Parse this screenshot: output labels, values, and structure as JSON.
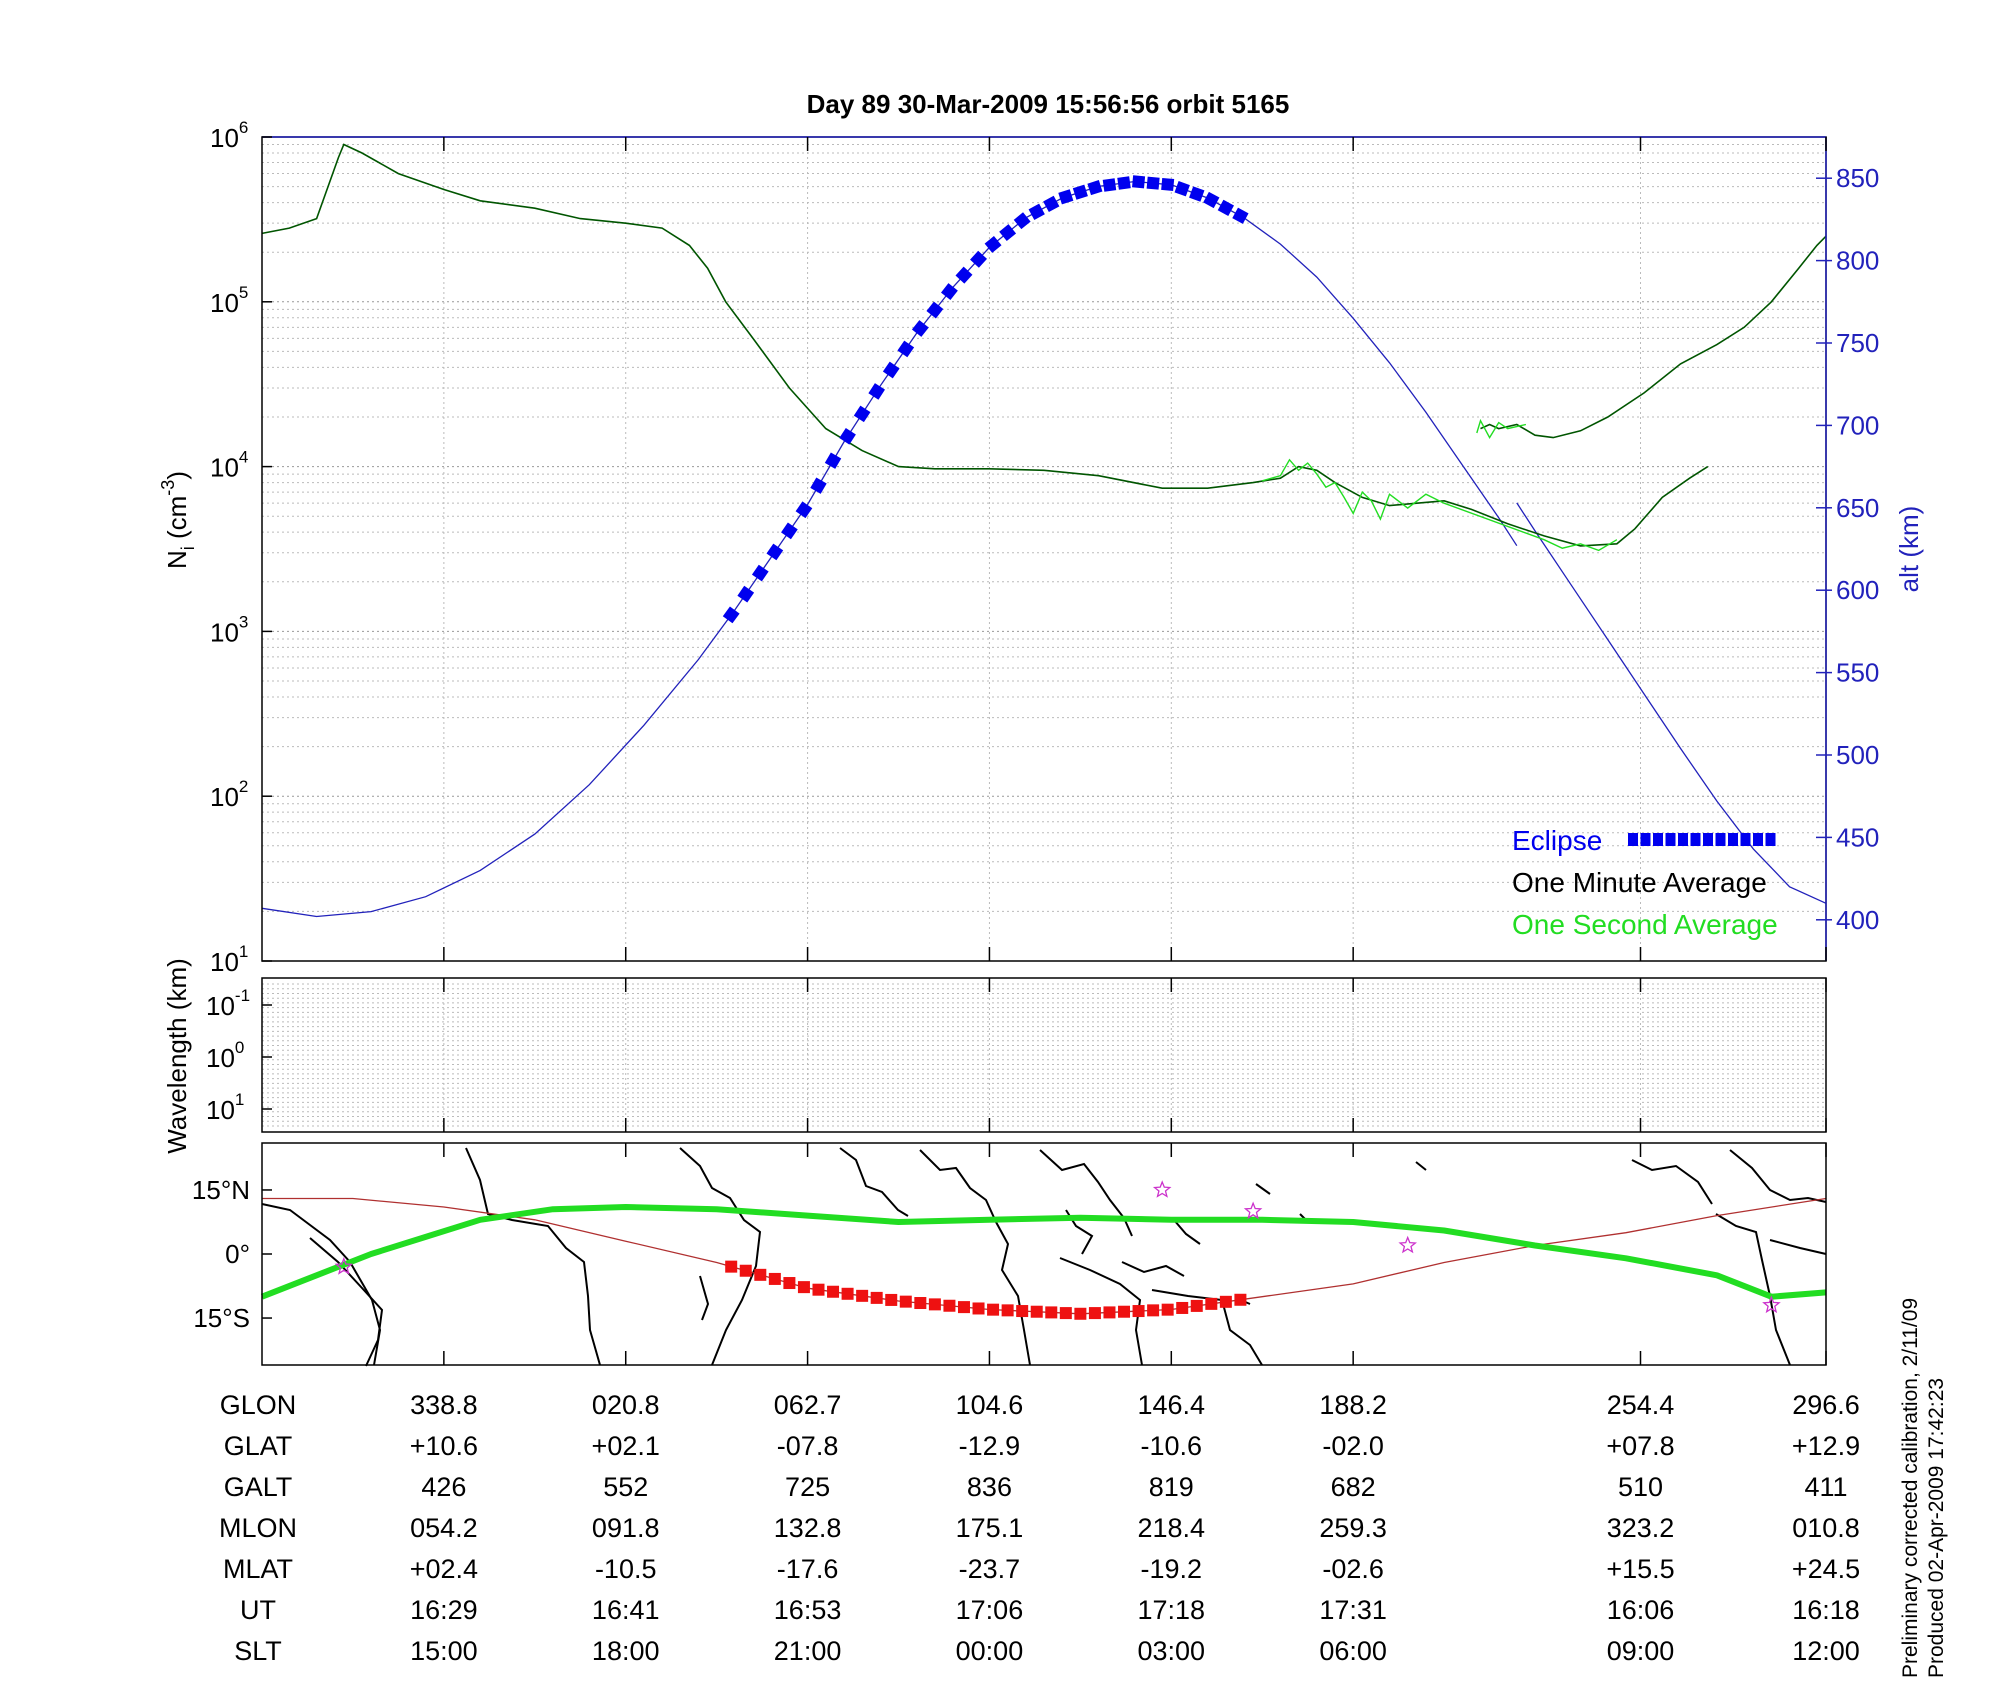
{
  "chart_data": [
    {
      "panel": "density",
      "type": "line",
      "title": "Day 89  30-Mar-2009 15:56:56   orbit 5165",
      "ylabel": "N_i (cm^-3)",
      "ylabel_main": "N",
      "ylabel_sub": "i",
      "ylabel_rest": " (cm",
      "ylabel_sup": "-3",
      "ylabel_close": ")",
      "yscale": "log",
      "ylim": [
        10,
        1000000
      ],
      "y_ticks": [
        {
          "value": 10,
          "base": "10",
          "exp": "1"
        },
        {
          "value": 100,
          "base": "10",
          "exp": "2"
        },
        {
          "value": 1000,
          "base": "10",
          "exp": "3"
        },
        {
          "value": 10000,
          "base": "10",
          "exp": "4"
        },
        {
          "value": 100000,
          "base": "10",
          "exp": "5"
        },
        {
          "value": 1000000,
          "base": "10",
          "exp": "6"
        }
      ],
      "y2label": "alt (km)",
      "y2lim": [
        375,
        875
      ],
      "y2_ticks": [
        "400",
        "450",
        "500",
        "550",
        "600",
        "650",
        "700",
        "750",
        "800",
        "850"
      ],
      "xlim": [
        0,
        8.6
      ],
      "grid": true,
      "legend_placement": "bottom-right",
      "legend": [
        "Eclipse",
        "One Minute Average",
        "One Second Average"
      ],
      "colors": {
        "eclipse": "#0000ee",
        "minute": "#005500",
        "second": "#22dd22",
        "altitude": "#2222bb",
        "axis2": "#2222bb"
      },
      "series": [
        {
          "name": "One Minute Average",
          "segments": [
            [
              [
                0,
                260000
              ],
              [
                0.15,
                280000
              ],
              [
                0.3,
                320000
              ],
              [
                0.42,
                750000
              ],
              [
                0.45,
                900000
              ],
              [
                0.55,
                800000
              ],
              [
                0.75,
                600000
              ],
              [
                1.0,
                480000
              ],
              [
                1.2,
                410000
              ],
              [
                1.5,
                370000
              ],
              [
                1.75,
                320000
              ],
              [
                2.0,
                300000
              ],
              [
                2.2,
                280000
              ],
              [
                2.35,
                220000
              ],
              [
                2.45,
                160000
              ],
              [
                2.55,
                100000
              ],
              [
                2.7,
                60000
              ],
              [
                2.9,
                30000
              ],
              [
                3.1,
                17000
              ],
              [
                3.3,
                12500
              ],
              [
                3.5,
                10000
              ],
              [
                3.7,
                9700
              ],
              [
                4.0,
                9700
              ],
              [
                4.3,
                9500
              ],
              [
                4.6,
                8800
              ],
              [
                4.95,
                7400
              ],
              [
                5.2,
                7400
              ],
              [
                5.45,
                8000
              ],
              [
                5.6,
                8500
              ],
              [
                5.7,
                10000
              ],
              [
                5.8,
                9500
              ],
              [
                5.9,
                8000
              ],
              [
                6.05,
                6500
              ],
              [
                6.2,
                5800
              ],
              [
                6.35,
                6000
              ],
              [
                6.5,
                6200
              ],
              [
                6.65,
                5500
              ],
              [
                6.85,
                4500
              ],
              [
                7.05,
                3800
              ],
              [
                7.25,
                3300
              ],
              [
                7.45,
                3400
              ],
              [
                7.55,
                4200
              ],
              [
                7.7,
                6500
              ],
              [
                7.85,
                8500
              ],
              [
                7.95,
                10000
              ]
            ],
            [
              [
                6.7,
                17000
              ],
              [
                6.75,
                18000
              ],
              [
                6.8,
                17000
              ],
              [
                6.9,
                18000
              ],
              [
                7.0,
                15500
              ],
              [
                7.1,
                15000
              ],
              [
                7.25,
                16500
              ],
              [
                7.4,
                20000
              ],
              [
                7.6,
                28000
              ],
              [
                7.8,
                42000
              ],
              [
                8.0,
                55000
              ],
              [
                8.15,
                70000
              ],
              [
                8.3,
                100000
              ],
              [
                8.45,
                160000
              ],
              [
                8.55,
                220000
              ],
              [
                8.6,
                250000
              ]
            ]
          ]
        },
        {
          "name": "One Second Average",
          "segments": [
            [
              [
                5.5,
                8200
              ],
              [
                5.6,
                8800
              ],
              [
                5.65,
                11000
              ],
              [
                5.7,
                9500
              ],
              [
                5.75,
                10500
              ],
              [
                5.8,
                9000
              ],
              [
                5.85,
                7500
              ],
              [
                5.9,
                8000
              ],
              [
                5.95,
                6500
              ],
              [
                6.0,
                5200
              ],
              [
                6.05,
                7000
              ],
              [
                6.1,
                6200
              ],
              [
                6.15,
                4800
              ],
              [
                6.2,
                6800
              ],
              [
                6.3,
                5600
              ],
              [
                6.4,
                6800
              ],
              [
                6.5,
                6000
              ],
              [
                7.05,
                3600
              ],
              [
                7.15,
                3200
              ],
              [
                7.25,
                3400
              ],
              [
                7.35,
                3100
              ],
              [
                7.45,
                3600
              ]
            ],
            [
              [
                6.68,
                16000
              ],
              [
                6.7,
                19000
              ],
              [
                6.75,
                15000
              ],
              [
                6.8,
                18500
              ],
              [
                6.85,
                17000
              ],
              [
                6.95,
                18000
              ]
            ]
          ]
        },
        {
          "name": "Altitude",
          "axis": "right",
          "segments": [
            [
              [
                0,
                407
              ],
              [
                0.3,
                402
              ],
              [
                0.6,
                405
              ],
              [
                0.9,
                414
              ],
              [
                1.2,
                430
              ],
              [
                1.5,
                452
              ],
              [
                1.8,
                482
              ],
              [
                2.1,
                518
              ],
              [
                2.4,
                558
              ],
              [
                2.6,
                588
              ],
              [
                2.8,
                620
              ],
              [
                3.0,
                652
              ],
              [
                3.2,
                690
              ],
              [
                3.4,
                724
              ],
              [
                3.6,
                756
              ],
              [
                3.8,
                784
              ],
              [
                4.0,
                808
              ],
              [
                4.2,
                826
              ],
              [
                4.4,
                838
              ],
              [
                4.6,
                845
              ],
              [
                4.8,
                848
              ],
              [
                5.0,
                846
              ],
              [
                5.2,
                838
              ],
              [
                5.4,
                826
              ],
              [
                5.6,
                810
              ],
              [
                5.8,
                790
              ],
              [
                6.0,
                765
              ],
              [
                6.2,
                738
              ],
              [
                6.4,
                708
              ],
              [
                6.6,
                676
              ],
              [
                6.8,
                644
              ],
              [
                6.9,
                627
              ]
            ],
            [
              [
                6.9,
                653
              ],
              [
                7.0,
                636
              ],
              [
                7.2,
                603
              ],
              [
                7.4,
                570
              ],
              [
                7.6,
                537
              ],
              [
                7.8,
                504
              ],
              [
                8.0,
                472
              ],
              [
                8.2,
                443
              ],
              [
                8.4,
                420
              ],
              [
                8.6,
                410
              ]
            ]
          ]
        },
        {
          "name": "Eclipse",
          "axis": "right",
          "x_start": 2.58,
          "x_end": 5.38,
          "n": 36
        }
      ],
      "x_ticks": [
        1.0,
        2.0,
        3.0,
        4.0,
        5.0,
        6.0,
        7.58,
        8.6
      ]
    },
    {
      "panel": "wavelength",
      "type": "line",
      "ylabel": "Wavelength (km)",
      "y_ticks": [
        {
          "base": "10",
          "exp": "-1"
        },
        {
          "base": "10",
          "exp": "0"
        },
        {
          "base": "10",
          "exp": "1"
        }
      ],
      "grid": true
    },
    {
      "panel": "map",
      "type": "line",
      "y_ticks": [
        "15°N",
        "0°",
        "15°S"
      ],
      "ylim": [
        -26,
        26
      ],
      "series": [
        {
          "name": "Magnetic equator",
          "color": "#b03030",
          "points": [
            [
              0,
              13
            ],
            [
              0.5,
              13
            ],
            [
              1,
              11
            ],
            [
              1.5,
              8
            ],
            [
              2,
              3
            ],
            [
              2.5,
              -2
            ],
            [
              3,
              -8
            ],
            [
              3.5,
              -11
            ],
            [
              4,
              -13
            ],
            [
              4.5,
              -14
            ],
            [
              5,
              -13
            ],
            [
              5.5,
              -10
            ],
            [
              6,
              -7
            ],
            [
              6.5,
              -2
            ],
            [
              7,
              2
            ],
            [
              7.5,
              5
            ],
            [
              8,
              9
            ],
            [
              8.6,
              13
            ]
          ]
        },
        {
          "name": "Orbit track",
          "color": "#22dd22",
          "points": [
            [
              0,
              -10
            ],
            [
              0.3,
              -5
            ],
            [
              0.6,
              0
            ],
            [
              0.9,
              4
            ],
            [
              1.2,
              8
            ],
            [
              1.6,
              10.5
            ],
            [
              2.0,
              11
            ],
            [
              2.5,
              10.5
            ],
            [
              3.0,
              9
            ],
            [
              3.5,
              7.5
            ],
            [
              4.0,
              8
            ],
            [
              4.5,
              8.5
            ],
            [
              5.0,
              8
            ],
            [
              5.5,
              8
            ],
            [
              6.0,
              7.5
            ],
            [
              6.5,
              5.5
            ],
            [
              7.0,
              2
            ],
            [
              7.5,
              -1
            ],
            [
              8.0,
              -5
            ],
            [
              8.3,
              -10
            ],
            [
              8.6,
              -9
            ]
          ]
        },
        {
          "name": "Eclipse track",
          "color": "#ee1111",
          "x_start": 2.58,
          "x_end": 5.38,
          "n": 36
        }
      ],
      "markers": [
        [
          0.45,
          -3
        ],
        [
          4.95,
          15
        ],
        [
          5.45,
          10
        ],
        [
          6.3,
          2
        ],
        [
          8.3,
          -12
        ]
      ]
    }
  ],
  "table": {
    "columns": [
      1.0,
      2.0,
      3.0,
      4.0,
      5.0,
      6.0,
      7.58,
      8.6
    ],
    "rows": [
      {
        "label": "GLON",
        "values": [
          "338.8",
          "020.8",
          "062.7",
          "104.6",
          "146.4",
          "188.2",
          "254.4",
          "296.6"
        ]
      },
      {
        "label": "GLAT",
        "values": [
          "+10.6",
          "+02.1",
          "-07.8",
          "-12.9",
          "-10.6",
          "-02.0",
          "+07.8",
          "+12.9"
        ]
      },
      {
        "label": "GALT",
        "values": [
          "426",
          "552",
          "725",
          "836",
          "819",
          "682",
          "510",
          "411"
        ]
      },
      {
        "label": "MLON",
        "values": [
          "054.2",
          "091.8",
          "132.8",
          "175.1",
          "218.4",
          "259.3",
          "323.2",
          "010.8"
        ]
      },
      {
        "label": "MLAT",
        "values": [
          "+02.4",
          "-10.5",
          "-17.6",
          "-23.7",
          "-19.2",
          "-02.6",
          "+15.5",
          "+24.5"
        ]
      },
      {
        "label": "UT",
        "values": [
          "16:29",
          "16:41",
          "16:53",
          "17:06",
          "17:18",
          "17:31",
          "16:06",
          "16:18"
        ]
      },
      {
        "label": "SLT",
        "values": [
          "15:00",
          "18:00",
          "21:00",
          "00:00",
          "03:00",
          "06:00",
          "09:00",
          "12:00"
        ]
      }
    ]
  },
  "footnote": {
    "line1": "Preliminary corrected calibration, 2/11/09",
    "line2": "Produced 02-Apr-2009 17:42:23"
  }
}
